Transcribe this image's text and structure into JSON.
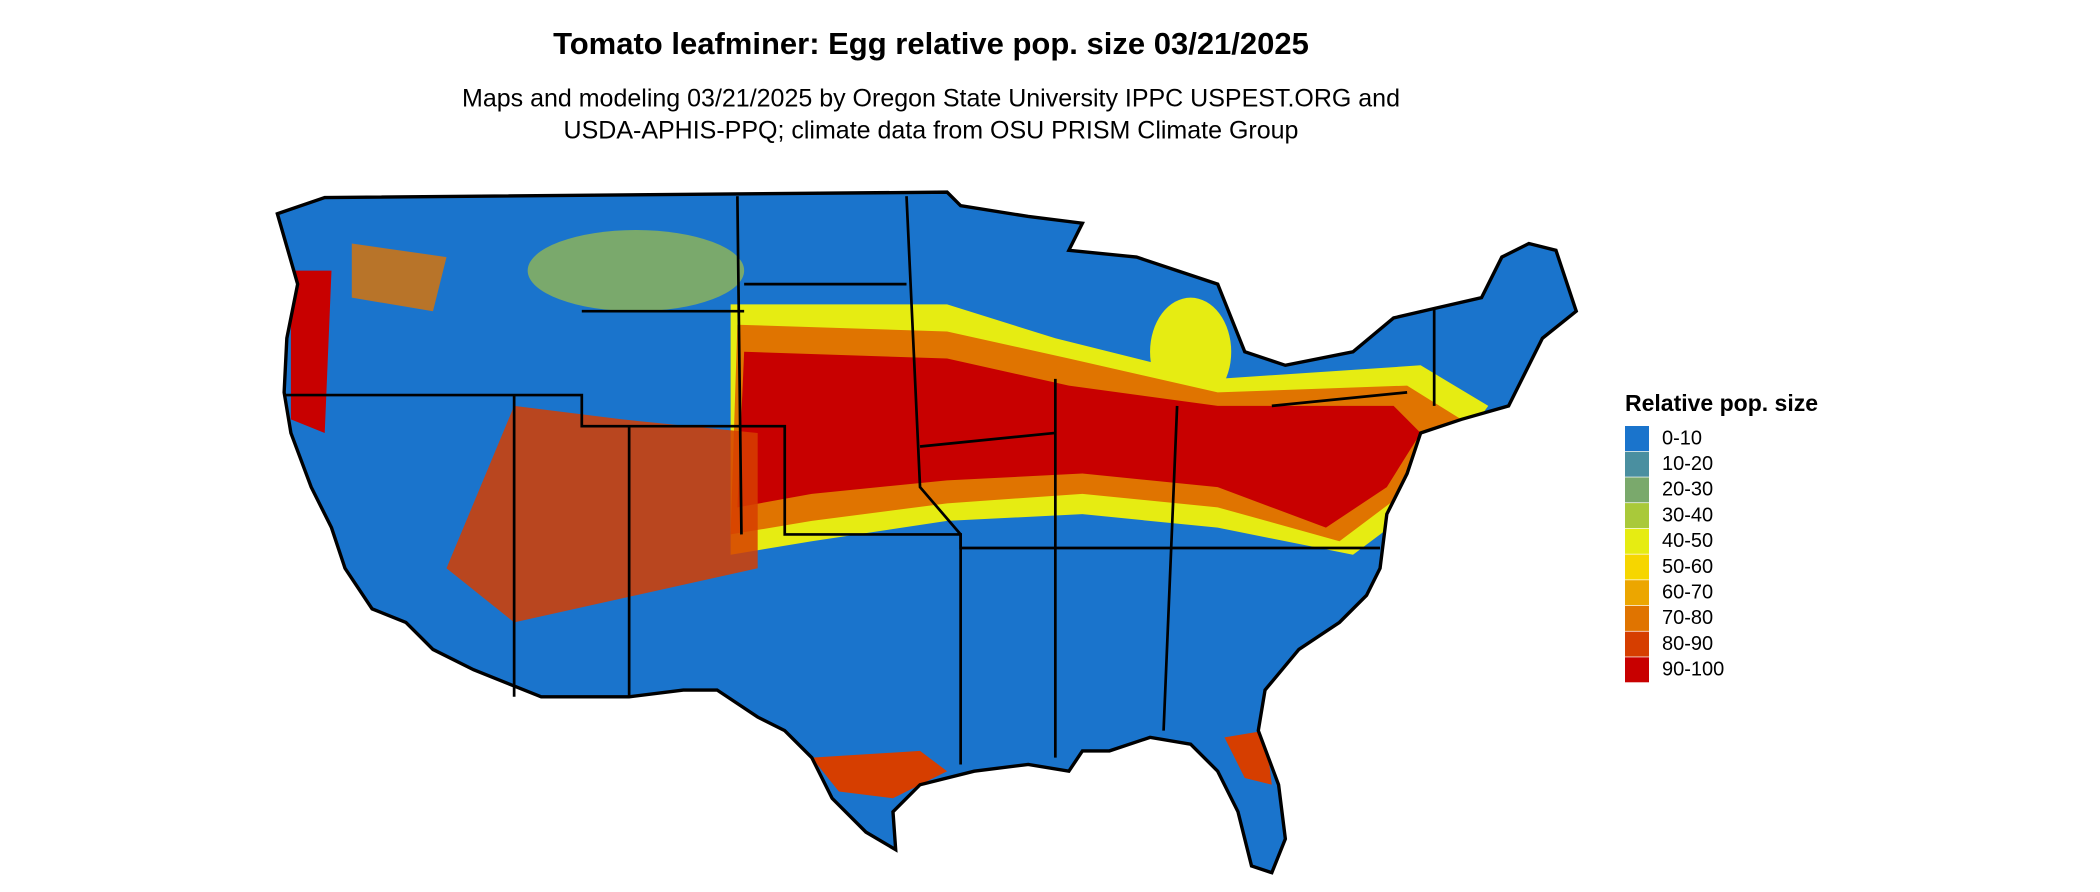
{
  "title": "Tomato leafminer: Egg relative pop. size 03/21/2025",
  "subtitle": [
    "Maps and modeling 03/21/2025 by Oregon State University IPPC USPEST.ORG and",
    "USDA-APHIS-PPQ; climate data from OSU PRISM Climate Group"
  ],
  "legend": {
    "title": "Relative pop. size",
    "items": [
      {
        "label": "0-10",
        "color": "#1a74cc"
      },
      {
        "label": "10-20",
        "color": "#4a8fa0"
      },
      {
        "label": "20-30",
        "color": "#7aa96c"
      },
      {
        "label": "30-40",
        "color": "#a9c93a"
      },
      {
        "label": "40-50",
        "color": "#e6ec12"
      },
      {
        "label": "50-60",
        "color": "#f6d600"
      },
      {
        "label": "60-70",
        "color": "#eca600"
      },
      {
        "label": "70-80",
        "color": "#e07400"
      },
      {
        "label": "80-90",
        "color": "#d63e00"
      },
      {
        "label": "90-100",
        "color": "#c80000"
      }
    ]
  }
}
